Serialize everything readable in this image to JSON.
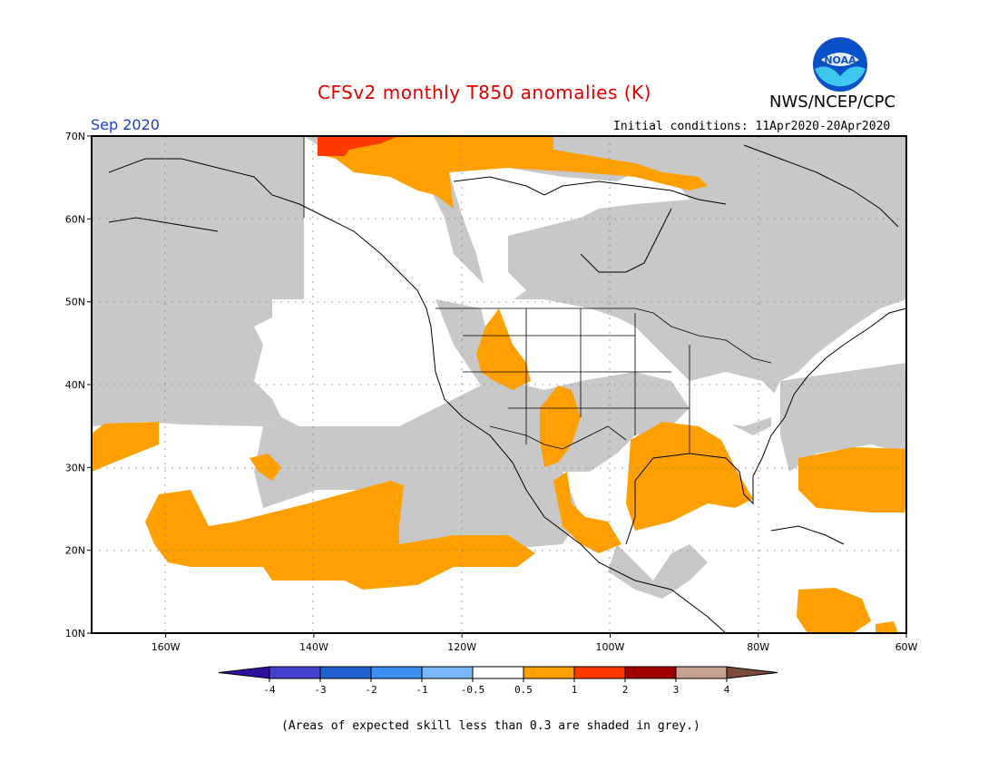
{
  "title": "CFSv2 monthly T850 anomalies (K)",
  "organization": "NWS/NCEP/CPC",
  "logo_text": "NOAA",
  "month_label": "Sep 2020",
  "initial_conditions": "Initial conditions: 11Apr2020-20Apr2020",
  "footnote": "(Areas of expected skill less than 0.3 are shaded in grey.)",
  "map": {
    "lat_range": [
      10,
      70
    ],
    "lon_range": [
      -170,
      -60
    ],
    "lat_ticks": [
      "10N",
      "20N",
      "30N",
      "40N",
      "50N",
      "60N",
      "70N"
    ],
    "lon_ticks": [
      "160W",
      "140W",
      "120W",
      "100W",
      "80W",
      "60W"
    ],
    "grey_color": "#c8c8c8",
    "neutral_color": "#ffffff",
    "warm_color": "#ffa000",
    "hot_color": "#ff3a00"
  },
  "colorbar": {
    "labels": [
      "-4",
      "-3",
      "-2",
      "-1",
      "-0.5",
      "0.5",
      "1",
      "2",
      "3",
      "4"
    ],
    "colors": [
      "#2f0fa0",
      "#4640d0",
      "#2060d0",
      "#3a90f0",
      "#78b8f8",
      "#ffffff",
      "#ffa000",
      "#ff3a00",
      "#a00000",
      "#c8a090",
      "#7a4a3a"
    ]
  }
}
